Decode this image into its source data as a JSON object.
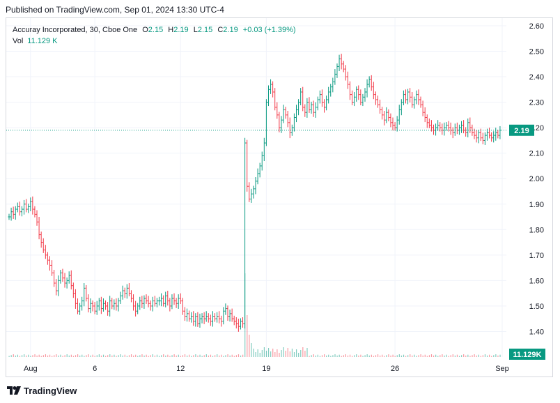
{
  "published": "Published on TradingView.com, Sep 01, 2024 13:30 UTC-4",
  "legend": {
    "symbol": "Accuray Incorporated, 30, Cboe One",
    "o_label": "O",
    "o_value": "2.15",
    "h_label": "H",
    "h_value": "2.19",
    "l_label": "L",
    "l_value": "2.15",
    "c_label": "C",
    "c_value": "2.19",
    "change": "+0.03 (+1.39%)",
    "vol_label": "Vol",
    "vol_value": "11.129 K"
  },
  "footer": {
    "brand": "TradingView"
  },
  "colors": {
    "up": "#089981",
    "down": "#f23645",
    "grid": "#f0f3fa",
    "text": "#131722"
  },
  "chart_data": {
    "type": "ohlc",
    "title": "Accuray Incorporated, 30, Cboe One",
    "y_axis": {
      "side": "right",
      "ticks": [
        "2.60",
        "2.50",
        "2.40",
        "2.30",
        "2.20",
        "2.10",
        "2.00",
        "1.90",
        "1.80",
        "1.70",
        "1.60",
        "1.50",
        "1.40"
      ],
      "ylim": [
        1.3,
        2.63
      ]
    },
    "x_axis": {
      "ticks": [
        "Aug",
        "6",
        "12",
        "19",
        "26",
        "Sep"
      ]
    },
    "last_price": {
      "value": 2.19,
      "label": "2.19"
    },
    "last_volume": {
      "label": "11.129K"
    },
    "close_series": [
      {
        "x": "Jul 31",
        "closes": [
          1.85,
          1.87,
          1.86,
          1.88,
          1.89,
          1.87,
          1.88,
          1.9,
          1.88,
          1.89
        ]
      },
      {
        "x": "Aug 1",
        "closes": [
          1.91,
          1.88,
          1.86,
          1.83,
          1.78,
          1.75,
          1.72,
          1.7,
          1.68,
          1.66
        ]
      },
      {
        "x": "Aug 2",
        "closes": [
          1.63,
          1.59,
          1.56,
          1.6,
          1.63,
          1.61,
          1.59,
          1.6,
          1.62,
          1.58
        ]
      },
      {
        "x": "Aug 5",
        "closes": [
          1.55,
          1.51,
          1.48,
          1.5,
          1.52,
          1.57,
          1.53,
          1.49,
          1.51,
          1.5
        ]
      },
      {
        "x": "Aug 6",
        "closes": [
          1.48,
          1.5,
          1.52,
          1.49,
          1.51,
          1.5,
          1.48,
          1.52,
          1.5,
          1.51
        ]
      },
      {
        "x": "Aug 7",
        "closes": [
          1.5,
          1.52,
          1.54,
          1.56,
          1.55,
          1.57,
          1.55,
          1.53,
          1.5,
          1.48
        ]
      },
      {
        "x": "Aug 8",
        "closes": [
          1.5,
          1.52,
          1.51,
          1.53,
          1.52,
          1.51,
          1.5,
          1.52,
          1.51,
          1.52
        ]
      },
      {
        "x": "Aug 9",
        "closes": [
          1.52,
          1.53,
          1.51,
          1.54,
          1.52,
          1.5,
          1.53,
          1.52,
          1.51,
          1.53
        ]
      },
      {
        "x": "Aug 12",
        "closes": [
          1.52,
          1.48,
          1.46,
          1.47,
          1.45,
          1.46,
          1.44,
          1.46,
          1.43,
          1.45
        ]
      },
      {
        "x": "Aug 13",
        "closes": [
          1.46,
          1.45,
          1.46,
          1.45,
          1.44,
          1.46,
          1.45,
          1.46,
          1.45,
          1.44
        ]
      },
      {
        "x": "Aug 14",
        "closes": [
          1.48,
          1.49,
          1.46,
          1.47,
          1.45,
          1.44,
          1.43,
          1.42,
          1.44,
          1.43
        ]
      },
      {
        "x": "Aug 15",
        "closes": [
          2.14,
          1.97,
          1.92,
          1.94,
          1.96,
          1.99,
          2.02,
          2.05,
          2.09,
          2.14
        ]
      },
      {
        "x": "Aug 16",
        "closes": [
          2.3,
          2.35,
          2.37,
          2.34,
          2.28,
          2.25,
          2.2,
          2.23,
          2.27,
          2.25
        ]
      },
      {
        "x": "Aug 19",
        "closes": [
          2.22,
          2.18,
          2.2,
          2.24,
          2.27,
          2.3,
          2.34,
          2.28,
          2.26,
          2.3
        ]
      },
      {
        "x": "Aug 20",
        "closes": [
          2.27,
          2.29,
          2.26,
          2.28,
          2.31,
          2.33,
          2.3,
          2.28,
          2.31,
          2.34
        ]
      },
      {
        "x": "Aug 21",
        "closes": [
          2.36,
          2.38,
          2.41,
          2.44,
          2.47,
          2.45,
          2.43,
          2.4,
          2.37,
          2.33
        ]
      },
      {
        "x": "Aug 22",
        "closes": [
          2.3,
          2.32,
          2.35,
          2.33,
          2.3,
          2.32,
          2.34,
          2.37,
          2.39,
          2.36
        ]
      },
      {
        "x": "Aug 23",
        "closes": [
          2.33,
          2.31,
          2.29,
          2.27,
          2.25,
          2.23,
          2.26,
          2.24,
          2.22,
          2.21
        ]
      },
      {
        "x": "Aug 26",
        "closes": [
          2.2,
          2.23,
          2.27,
          2.3,
          2.33,
          2.31,
          2.34,
          2.32,
          2.29,
          2.31
        ]
      },
      {
        "x": "Aug 27",
        "closes": [
          2.33,
          2.31,
          2.29,
          2.26,
          2.24,
          2.22,
          2.21,
          2.2,
          2.19,
          2.2
        ]
      },
      {
        "x": "Aug 28",
        "closes": [
          2.21,
          2.2,
          2.19,
          2.2,
          2.21,
          2.2,
          2.19,
          2.18,
          2.2,
          2.19
        ]
      },
      {
        "x": "Aug 29",
        "closes": [
          2.2,
          2.21,
          2.19,
          2.18,
          2.22,
          2.2,
          2.18,
          2.17,
          2.16,
          2.18
        ]
      },
      {
        "x": "Aug 30",
        "closes": [
          2.16,
          2.15,
          2.17,
          2.18,
          2.17,
          2.16,
          2.17,
          2.18,
          2.17,
          2.19
        ]
      }
    ]
  }
}
